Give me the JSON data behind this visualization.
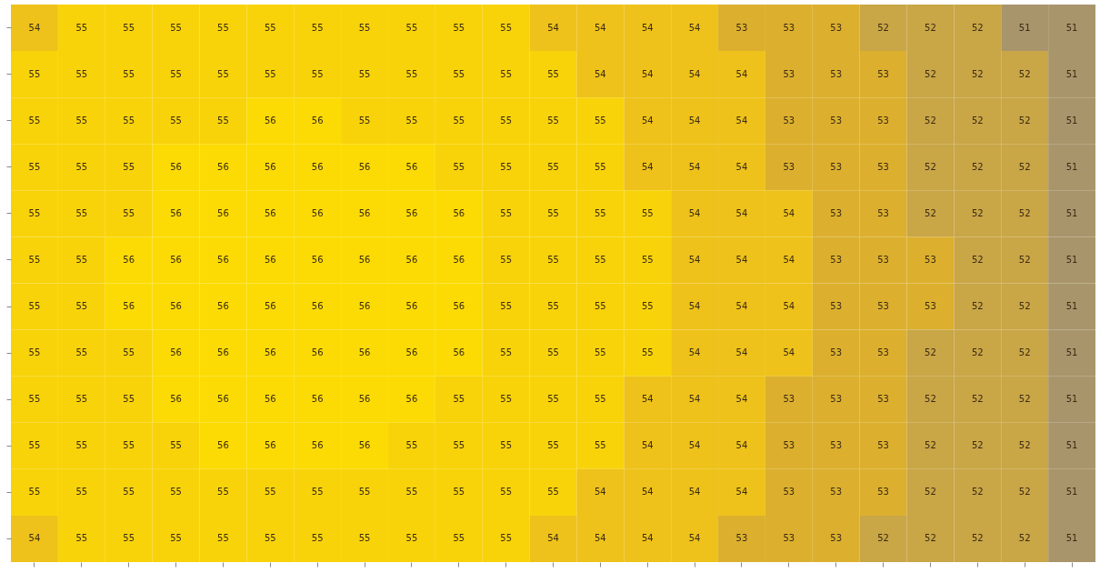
{
  "chart_data": {
    "type": "heatmap",
    "categories": [
      null,
      null,
      null,
      null,
      null,
      null,
      null,
      null,
      null,
      null,
      null,
      null,
      null,
      null,
      null,
      null,
      null,
      null,
      null,
      null,
      null,
      null,
      null
    ],
    "y_categories": [
      null,
      null,
      null,
      null,
      null,
      null,
      null,
      null,
      null,
      null,
      null,
      null
    ],
    "cells": [
      [
        54,
        55,
        55,
        55,
        55,
        55,
        55,
        55,
        55,
        55,
        55,
        54,
        54,
        54,
        54,
        53,
        53,
        53,
        52,
        52,
        52,
        51,
        51
      ],
      [
        55,
        55,
        55,
        55,
        55,
        55,
        55,
        55,
        55,
        55,
        55,
        55,
        54,
        54,
        54,
        54,
        53,
        53,
        53,
        52,
        52,
        52,
        51
      ],
      [
        55,
        55,
        55,
        55,
        55,
        56,
        56,
        55,
        55,
        55,
        55,
        55,
        55,
        54,
        54,
        54,
        53,
        53,
        53,
        52,
        52,
        52,
        51
      ],
      [
        55,
        55,
        55,
        56,
        56,
        56,
        56,
        56,
        56,
        55,
        55,
        55,
        55,
        54,
        54,
        54,
        53,
        53,
        53,
        52,
        52,
        52,
        51
      ],
      [
        55,
        55,
        55,
        56,
        56,
        56,
        56,
        56,
        56,
        56,
        55,
        55,
        55,
        55,
        54,
        54,
        54,
        53,
        53,
        52,
        52,
        52,
        51
      ],
      [
        55,
        55,
        56,
        56,
        56,
        56,
        56,
        56,
        56,
        56,
        55,
        55,
        55,
        55,
        54,
        54,
        54,
        53,
        53,
        53,
        52,
        52,
        51
      ],
      [
        55,
        55,
        56,
        56,
        56,
        56,
        56,
        56,
        56,
        56,
        55,
        55,
        55,
        55,
        54,
        54,
        54,
        53,
        53,
        53,
        52,
        52,
        51
      ],
      [
        55,
        55,
        55,
        56,
        56,
        56,
        56,
        56,
        56,
        56,
        55,
        55,
        55,
        55,
        54,
        54,
        54,
        53,
        53,
        52,
        52,
        52,
        51
      ],
      [
        55,
        55,
        55,
        56,
        56,
        56,
        56,
        56,
        56,
        55,
        55,
        55,
        55,
        54,
        54,
        54,
        53,
        53,
        53,
        52,
        52,
        52,
        51
      ],
      [
        55,
        55,
        55,
        55,
        56,
        56,
        56,
        56,
        55,
        55,
        55,
        55,
        55,
        54,
        54,
        54,
        53,
        53,
        53,
        52,
        52,
        52,
        51
      ],
      [
        55,
        55,
        55,
        55,
        55,
        55,
        55,
        55,
        55,
        55,
        55,
        55,
        54,
        54,
        54,
        54,
        53,
        53,
        53,
        52,
        52,
        52,
        51
      ],
      [
        54,
        55,
        55,
        55,
        55,
        55,
        55,
        55,
        55,
        55,
        55,
        54,
        54,
        54,
        54,
        53,
        53,
        53,
        52,
        52,
        52,
        52,
        51
      ]
    ],
    "colors": [
      "#a8956b",
      "#c9a646",
      "#dcb02e",
      "#eec21a",
      "#f8d30a",
      "#fcdb04"
    ],
    "data_labels": true,
    "grid": false,
    "legend": false
  }
}
